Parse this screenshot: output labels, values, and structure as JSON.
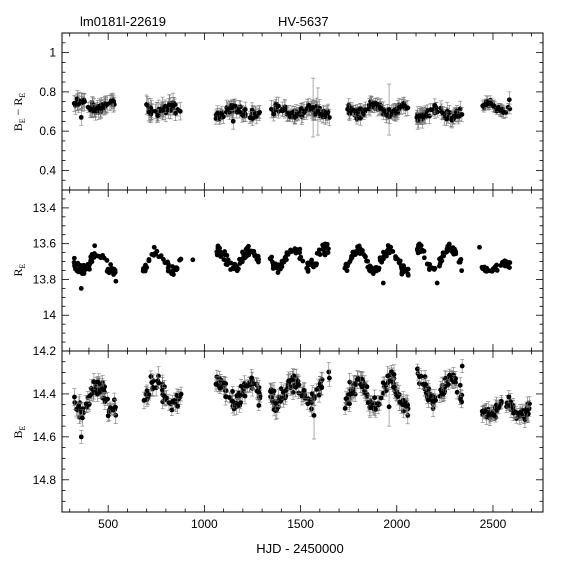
{
  "header": {
    "left_label": "lm0181l-22619",
    "right_label": "HV-5637"
  },
  "chart_data": [
    {
      "type": "scatter",
      "panel": "top",
      "ylabel_main": "B",
      "ylabel_sub": "E",
      "ylabel_mid": " − R",
      "ylabel_sub2": "E",
      "xlim": [
        260,
        2760
      ],
      "ylim": [
        0.3,
        1.1
      ],
      "y_inverted": false,
      "y_ticks": [
        0.4,
        0.6,
        0.8,
        1
      ],
      "y_tick_labels": [
        "0.4",
        "0.6",
        "0.8",
        "1"
      ],
      "error_bars": true,
      "segments": [
        {
          "x0": 320,
          "x1": 540,
          "n": 55,
          "center": 0.73,
          "amp": 0.02,
          "scatter": 0.025,
          "err": 0.035
        },
        {
          "x0": 680,
          "x1": 880,
          "n": 40,
          "center": 0.71,
          "amp": 0.02,
          "scatter": 0.03,
          "err": 0.04
        },
        {
          "x0": 1060,
          "x1": 1290,
          "n": 65,
          "center": 0.7,
          "amp": 0.02,
          "scatter": 0.025,
          "err": 0.03
        },
        {
          "x0": 1340,
          "x1": 1650,
          "n": 75,
          "center": 0.7,
          "amp": 0.015,
          "scatter": 0.025,
          "err": 0.035
        },
        {
          "x0": 1730,
          "x1": 2060,
          "n": 90,
          "center": 0.71,
          "amp": 0.025,
          "scatter": 0.025,
          "err": 0.03
        },
        {
          "x0": 2100,
          "x1": 2340,
          "n": 60,
          "center": 0.69,
          "amp": 0.02,
          "scatter": 0.025,
          "err": 0.035
        },
        {
          "x0": 2440,
          "x1": 2590,
          "n": 35,
          "center": 0.72,
          "amp": 0.02,
          "scatter": 0.02,
          "err": 0.025
        }
      ],
      "outliers": [
        {
          "x": 1565,
          "y": 0.72,
          "err": 0.15
        },
        {
          "x": 1590,
          "y": 0.7,
          "err": 0.12
        },
        {
          "x": 1960,
          "y": 0.71,
          "err": 0.13
        },
        {
          "x": 1150,
          "y": 0.65,
          "err": 0.04
        },
        {
          "x": 360,
          "y": 0.67,
          "err": 0.04
        },
        {
          "x": 2585,
          "y": 0.76,
          "err": 0.04
        }
      ]
    },
    {
      "type": "scatter",
      "panel": "middle",
      "ylabel_main": "R",
      "ylabel_sub": "E",
      "xlim": [
        260,
        2760
      ],
      "ylim": [
        14.2,
        13.3
      ],
      "y_inverted": true,
      "y_ticks": [
        13.4,
        13.6,
        13.8,
        14
      ],
      "y_tick_labels": [
        "13.4",
        "13.6",
        "13.8",
        "14"
      ],
      "error_bars": false,
      "segments": [
        {
          "x0": 320,
          "x1": 540,
          "n": 55,
          "center": 13.7,
          "amp": 0.05,
          "scatter": 0.04,
          "err": 0
        },
        {
          "x0": 680,
          "x1": 880,
          "n": 40,
          "center": 13.7,
          "amp": 0.06,
          "scatter": 0.04,
          "err": 0
        },
        {
          "x0": 1060,
          "x1": 1290,
          "n": 65,
          "center": 13.69,
          "amp": 0.05,
          "scatter": 0.04,
          "err": 0
        },
        {
          "x0": 1340,
          "x1": 1650,
          "n": 75,
          "center": 13.68,
          "amp": 0.05,
          "scatter": 0.04,
          "err": 0
        },
        {
          "x0": 1730,
          "x1": 2060,
          "n": 90,
          "center": 13.69,
          "amp": 0.06,
          "scatter": 0.04,
          "err": 0
        },
        {
          "x0": 2100,
          "x1": 2340,
          "n": 60,
          "center": 13.68,
          "amp": 0.06,
          "scatter": 0.04,
          "err": 0
        },
        {
          "x0": 2440,
          "x1": 2590,
          "n": 35,
          "center": 13.73,
          "amp": 0.02,
          "scatter": 0.02,
          "err": 0
        }
      ],
      "outliers": [
        {
          "x": 360,
          "y": 13.85,
          "err": 0
        },
        {
          "x": 540,
          "y": 13.81,
          "err": 0
        },
        {
          "x": 940,
          "y": 13.69,
          "err": 0
        },
        {
          "x": 1930,
          "y": 13.82,
          "err": 0
        },
        {
          "x": 2210,
          "y": 13.82,
          "err": 0
        },
        {
          "x": 2430,
          "y": 13.62,
          "err": 0
        }
      ]
    },
    {
      "type": "scatter",
      "panel": "bottom",
      "ylabel_main": "B",
      "ylabel_sub": "E",
      "xlabel": "HJD - 2450000",
      "xlim": [
        260,
        2760
      ],
      "ylim": [
        14.95,
        14.2
      ],
      "y_inverted": true,
      "y_ticks": [
        14.2,
        14.4,
        14.6,
        14.8
      ],
      "y_tick_labels": [
        "14.2",
        "14.4",
        "14.6",
        "14.8"
      ],
      "x_ticks": [
        500,
        1000,
        1500,
        2000,
        2500
      ],
      "x_tick_labels": [
        "500",
        "1000",
        "1500",
        "2000",
        "2500"
      ],
      "error_bars": true,
      "segments": [
        {
          "x0": 320,
          "x1": 540,
          "n": 55,
          "center": 14.42,
          "amp": 0.06,
          "scatter": 0.05,
          "err": 0.035
        },
        {
          "x0": 680,
          "x1": 880,
          "n": 40,
          "center": 14.4,
          "amp": 0.06,
          "scatter": 0.05,
          "err": 0.035
        },
        {
          "x0": 1060,
          "x1": 1290,
          "n": 65,
          "center": 14.39,
          "amp": 0.05,
          "scatter": 0.05,
          "err": 0.03
        },
        {
          "x0": 1340,
          "x1": 1650,
          "n": 75,
          "center": 14.39,
          "amp": 0.05,
          "scatter": 0.05,
          "err": 0.035
        },
        {
          "x0": 1730,
          "x1": 2060,
          "n": 90,
          "center": 14.4,
          "amp": 0.06,
          "scatter": 0.05,
          "err": 0.035
        },
        {
          "x0": 2100,
          "x1": 2340,
          "n": 60,
          "center": 14.38,
          "amp": 0.06,
          "scatter": 0.05,
          "err": 0.03
        },
        {
          "x0": 2440,
          "x1": 2690,
          "n": 65,
          "center": 14.47,
          "amp": 0.03,
          "scatter": 0.04,
          "err": 0.03
        }
      ],
      "outliers": [
        {
          "x": 360,
          "y": 14.6,
          "err": 0.03
        },
        {
          "x": 1570,
          "y": 14.5,
          "err": 0.11
        },
        {
          "x": 1960,
          "y": 14.46,
          "err": 0.09
        },
        {
          "x": 2340,
          "y": 14.27,
          "err": 0.03
        }
      ]
    }
  ]
}
